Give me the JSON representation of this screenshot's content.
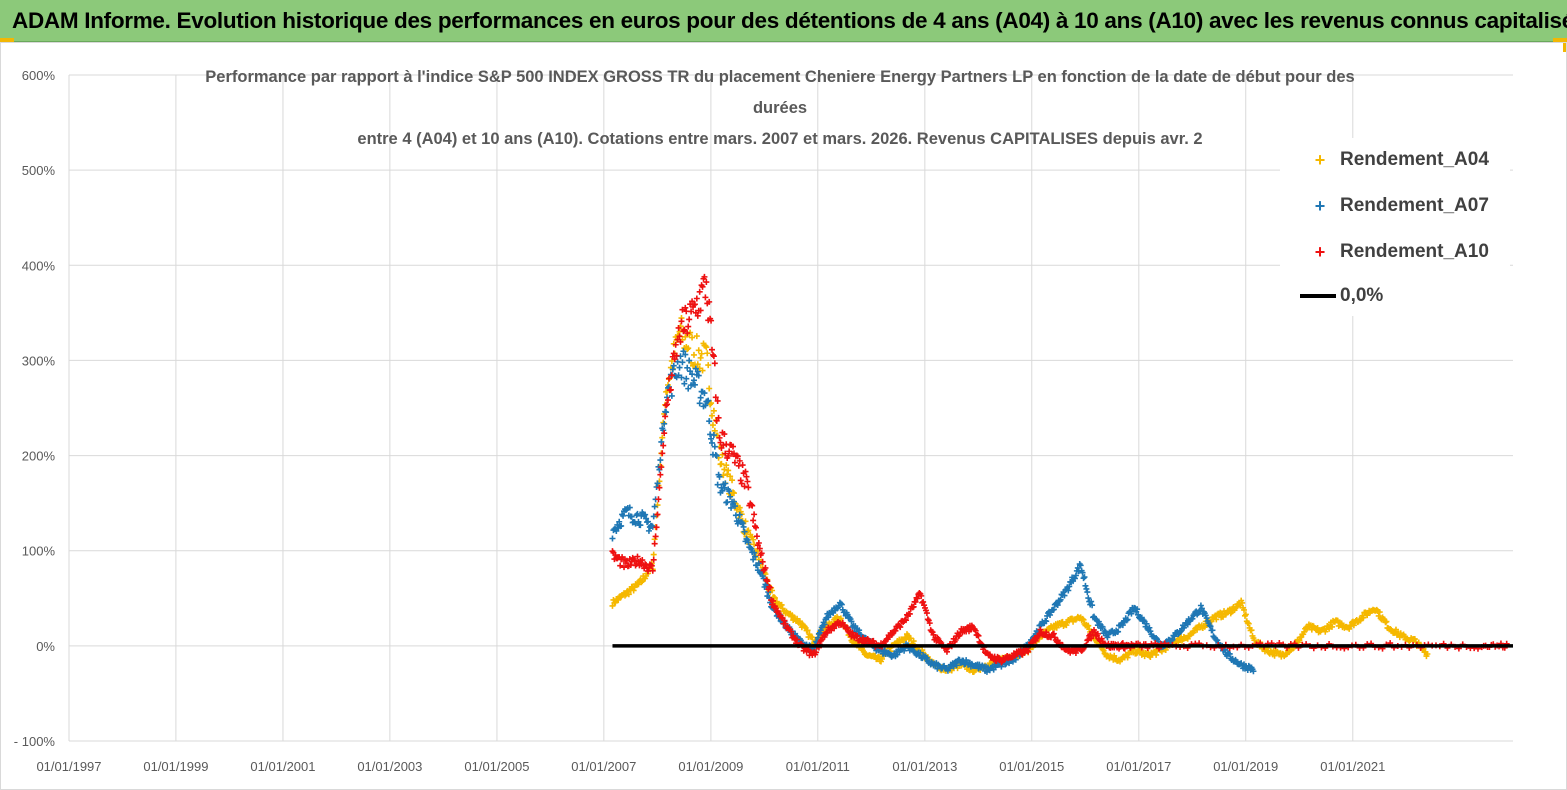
{
  "banner": {
    "title": "ADAM Informe. Evolution historique des performances en euros pour des détentions de 4 ans (A04) à 10 ans (A10) avec les revenus connus capitalisés"
  },
  "colors": {
    "banner_bg": "#8cc97a",
    "accent_corner": "#f2b705",
    "A04": "#f5b800",
    "A07": "#1f77b4",
    "A10": "#ee1111",
    "zero_line": "#000000"
  },
  "chart_data": {
    "type": "scatter",
    "title_lines": [
      "Performance par rapport à l'indice S&P 500 INDEX GROSS TR  du placement Cheniere Energy Partners LP en fonction de la date de début pour des",
      "durées",
      "entre 4 (A04) et 10 ans (A10).  Cotations entre mars. 2007 et mars. 2026. Revenus CAPITALISES depuis avr. 2"
    ],
    "x_ticks": [
      "01/01/1997",
      "01/01/1999",
      "01/01/2001",
      "01/01/2003",
      "01/01/2005",
      "01/01/2007",
      "01/01/2009",
      "01/01/2011",
      "01/01/2013",
      "01/01/2015",
      "01/01/2017",
      "01/01/2019",
      "01/01/2021"
    ],
    "y_ticks": [
      "600%",
      "500%",
      "400%",
      "300%",
      "200%",
      "100%",
      "0%",
      "- 100%"
    ],
    "xlim": [
      "1997-01-01",
      "2023-12-31"
    ],
    "ylim": [
      -100,
      600
    ],
    "grid": true,
    "legend_position": "top-right",
    "legend": [
      "Rendement_A04",
      "Rendement_A07",
      "Rendement_A10",
      "0,0%"
    ],
    "series": [
      {
        "name": "Rendement_A04",
        "color": "#f5b800",
        "points": [
          [
            "2007-03-01",
            45
          ],
          [
            "2007-06-01",
            55
          ],
          [
            "2007-09-01",
            65
          ],
          [
            "2007-12-01",
            85
          ],
          [
            "2008-03-01",
            270
          ],
          [
            "2008-06-01",
            330
          ],
          [
            "2008-09-01",
            310
          ],
          [
            "2008-12-01",
            300
          ],
          [
            "2009-03-01",
            200
          ],
          [
            "2009-06-01",
            160
          ],
          [
            "2009-09-01",
            120
          ],
          [
            "2009-12-01",
            90
          ],
          [
            "2010-03-01",
            50
          ],
          [
            "2010-06-01",
            35
          ],
          [
            "2010-09-01",
            25
          ],
          [
            "2010-12-01",
            5
          ],
          [
            "2011-03-01",
            20
          ],
          [
            "2011-06-01",
            30
          ],
          [
            "2011-09-01",
            5
          ],
          [
            "2011-12-01",
            -10
          ],
          [
            "2012-03-01",
            -15
          ],
          [
            "2012-06-01",
            0
          ],
          [
            "2012-09-01",
            10
          ],
          [
            "2012-12-01",
            -5
          ],
          [
            "2013-03-01",
            -20
          ],
          [
            "2013-06-01",
            -25
          ],
          [
            "2013-09-01",
            -20
          ],
          [
            "2013-12-01",
            -25
          ],
          [
            "2014-03-01",
            -20
          ],
          [
            "2014-06-01",
            -15
          ],
          [
            "2014-09-01",
            -10
          ],
          [
            "2014-12-01",
            -5
          ],
          [
            "2015-03-01",
            10
          ],
          [
            "2015-06-01",
            20
          ],
          [
            "2015-09-01",
            25
          ],
          [
            "2015-12-01",
            30
          ],
          [
            "2016-03-01",
            10
          ],
          [
            "2016-06-01",
            -10
          ],
          [
            "2016-09-01",
            -15
          ],
          [
            "2016-12-01",
            -5
          ],
          [
            "2017-03-01",
            -10
          ],
          [
            "2017-06-01",
            -5
          ],
          [
            "2017-09-01",
            5
          ],
          [
            "2017-12-01",
            10
          ],
          [
            "2018-03-01",
            20
          ],
          [
            "2018-06-01",
            30
          ],
          [
            "2018-09-01",
            35
          ],
          [
            "2018-12-01",
            45
          ],
          [
            "2019-03-01",
            5
          ],
          [
            "2019-06-01",
            -5
          ],
          [
            "2019-09-01",
            -10
          ],
          [
            "2019-12-01",
            0
          ],
          [
            "2020-03-01",
            20
          ],
          [
            "2020-06-01",
            15
          ],
          [
            "2020-09-01",
            25
          ],
          [
            "2020-12-01",
            20
          ],
          [
            "2021-03-01",
            30
          ],
          [
            "2021-06-01",
            40
          ],
          [
            "2021-09-01",
            20
          ],
          [
            "2021-12-01",
            10
          ],
          [
            "2022-03-01",
            5
          ],
          [
            "2022-06-01",
            -10
          ]
        ]
      },
      {
        "name": "Rendement_A07",
        "color": "#1f77b4",
        "points": [
          [
            "2007-03-01",
            120
          ],
          [
            "2007-06-01",
            140
          ],
          [
            "2007-09-01",
            135
          ],
          [
            "2007-12-01",
            125
          ],
          [
            "2008-03-01",
            260
          ],
          [
            "2008-06-01",
            300
          ],
          [
            "2008-09-01",
            280
          ],
          [
            "2008-12-01",
            260
          ],
          [
            "2009-03-01",
            170
          ],
          [
            "2009-06-01",
            150
          ],
          [
            "2009-09-01",
            110
          ],
          [
            "2009-12-01",
            80
          ],
          [
            "2010-03-01",
            40
          ],
          [
            "2010-06-01",
            20
          ],
          [
            "2010-09-01",
            5
          ],
          [
            "2010-12-01",
            -5
          ],
          [
            "2011-03-01",
            30
          ],
          [
            "2011-06-01",
            45
          ],
          [
            "2011-09-01",
            20
          ],
          [
            "2011-12-01",
            5
          ],
          [
            "2012-03-01",
            -5
          ],
          [
            "2012-06-01",
            -10
          ],
          [
            "2012-09-01",
            0
          ],
          [
            "2012-12-01",
            -10
          ],
          [
            "2013-03-01",
            -20
          ],
          [
            "2013-06-01",
            -25
          ],
          [
            "2013-09-01",
            -15
          ],
          [
            "2013-12-01",
            -20
          ],
          [
            "2014-03-01",
            -25
          ],
          [
            "2014-06-01",
            -20
          ],
          [
            "2014-09-01",
            -15
          ],
          [
            "2014-12-01",
            0
          ],
          [
            "2015-03-01",
            20
          ],
          [
            "2015-06-01",
            40
          ],
          [
            "2015-09-01",
            60
          ],
          [
            "2015-12-01",
            85
          ],
          [
            "2016-03-01",
            30
          ],
          [
            "2016-06-01",
            10
          ],
          [
            "2016-09-01",
            20
          ],
          [
            "2016-12-01",
            40
          ],
          [
            "2017-03-01",
            20
          ],
          [
            "2017-06-01",
            0
          ],
          [
            "2017-09-01",
            10
          ],
          [
            "2017-12-01",
            25
          ],
          [
            "2018-03-01",
            40
          ],
          [
            "2018-06-01",
            10
          ],
          [
            "2018-09-01",
            -10
          ],
          [
            "2018-12-01",
            -20
          ],
          [
            "2019-03-01",
            -25
          ]
        ]
      },
      {
        "name": "Rendement_A10",
        "color": "#ee1111",
        "points": [
          [
            "2007-03-01",
            95
          ],
          [
            "2007-06-01",
            85
          ],
          [
            "2007-09-01",
            90
          ],
          [
            "2007-12-01",
            80
          ],
          [
            "2008-03-01",
            250
          ],
          [
            "2008-06-01",
            330
          ],
          [
            "2008-09-01",
            350
          ],
          [
            "2008-12-01",
            380
          ],
          [
            "2009-03-01",
            220
          ],
          [
            "2009-06-01",
            200
          ],
          [
            "2009-09-01",
            170
          ],
          [
            "2009-12-01",
            100
          ],
          [
            "2010-03-01",
            45
          ],
          [
            "2010-06-01",
            20
          ],
          [
            "2010-09-01",
            0
          ],
          [
            "2010-12-01",
            -10
          ],
          [
            "2011-03-01",
            15
          ],
          [
            "2011-06-01",
            25
          ],
          [
            "2011-09-01",
            10
          ],
          [
            "2011-12-01",
            5
          ],
          [
            "2012-03-01",
            0
          ],
          [
            "2012-06-01",
            15
          ],
          [
            "2012-09-01",
            30
          ],
          [
            "2012-12-01",
            55
          ],
          [
            "2013-03-01",
            10
          ],
          [
            "2013-06-01",
            -5
          ],
          [
            "2013-09-01",
            15
          ],
          [
            "2013-12-01",
            20
          ],
          [
            "2014-03-01",
            -10
          ],
          [
            "2014-06-01",
            -15
          ],
          [
            "2014-09-01",
            -10
          ],
          [
            "2014-12-01",
            -5
          ],
          [
            "2015-03-01",
            15
          ],
          [
            "2015-06-01",
            10
          ],
          [
            "2015-09-01",
            -5
          ],
          [
            "2015-12-01",
            -5
          ],
          [
            "2016-03-01",
            15
          ],
          [
            "2016-06-01",
            0
          ],
          [
            "2016-09-01",
            0
          ],
          [
            "2016-12-01",
            0
          ],
          [
            "2017-06-01",
            0
          ],
          [
            "2018-06-01",
            0
          ],
          [
            "2019-06-01",
            0
          ],
          [
            "2020-06-01",
            0
          ],
          [
            "2021-06-01",
            0
          ],
          [
            "2022-06-01",
            0
          ],
          [
            "2023-06-01",
            0
          ],
          [
            "2023-12-01",
            0
          ]
        ]
      }
    ],
    "reference_line": {
      "name": "0,0%",
      "value": 0,
      "x_start": "2007-03-01",
      "x_end": "2023-12-31",
      "color": "#000000"
    }
  }
}
